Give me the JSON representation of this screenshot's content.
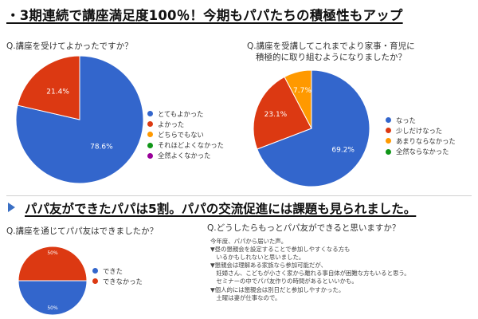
{
  "headline_1": "・3期連続で講座満足度100％！今期もパパたちの積極性もアップ",
  "headline_2": "パパ友ができたパパは5割。パパの交流促進には課題も見られました。",
  "colors": {
    "blue": "#3366cc",
    "red": "#dc3912",
    "orange": "#ff9900",
    "green": "#109618",
    "purple": "#990099"
  },
  "chart_data": [
    {
      "type": "pie",
      "title": "Q.講座を受けてよかったですか？",
      "slices": [
        {
          "label": "とてもよかった",
          "value": 78.6,
          "color": "#3366cc",
          "data_label": "78.6%"
        },
        {
          "label": "よかった",
          "value": 21.4,
          "color": "#dc3912",
          "data_label": "21.4%"
        },
        {
          "label": "どちらでもない",
          "value": 0,
          "color": "#ff9900",
          "data_label": ""
        },
        {
          "label": "それほどよくなかった",
          "value": 0,
          "color": "#109618",
          "data_label": ""
        },
        {
          "label": "全然よくなかった",
          "value": 0,
          "color": "#990099",
          "data_label": ""
        }
      ],
      "legend_position": "right"
    },
    {
      "type": "pie",
      "title_lines": [
        "Q.講座を受講してこれまでより家事・育児に",
        "積極的に取り組むようになりましたか？"
      ],
      "slices": [
        {
          "label": "なった",
          "value": 69.2,
          "color": "#3366cc",
          "data_label": "69.2%"
        },
        {
          "label": "少しだけなった",
          "value": 23.1,
          "color": "#dc3912",
          "data_label": "23.1%"
        },
        {
          "label": "あまりならなかった",
          "value": 7.7,
          "color": "#ff9900",
          "data_label": "7.7%"
        },
        {
          "label": "全然ならなかった",
          "value": 0,
          "color": "#109618",
          "data_label": ""
        }
      ],
      "legend_position": "right"
    },
    {
      "type": "pie",
      "title": "Q.講座を通じてパパ友はできましたか？",
      "slices": [
        {
          "label": "できた",
          "value": 50,
          "color": "#3366cc",
          "data_label": "50%"
        },
        {
          "label": "できなかった",
          "value": 50,
          "color": "#dc3912",
          "data_label": "50%"
        }
      ],
      "legend_position": "right"
    }
  ],
  "q4": {
    "title": "Q.どうしたらもっとパパ友ができると思いますか？",
    "lines": [
      "今年度、パパから届いた声。",
      "▼昼の懇親会を設定することで参加しやすくなる方も",
      "　いるかもしれないと思いました。",
      "▼懇親会は理解ある家族なら参加可能だが、",
      "　妊婦さん、こどもが小さく家から離れる事自体が困難な方もいると思う。",
      "　セミナーの中でパパ友作りの時間があるといいかも。",
      "▼個人的には懇親会は別日だと参加しやすかった。",
      "　土曜は妻が仕事なので。"
    ]
  }
}
